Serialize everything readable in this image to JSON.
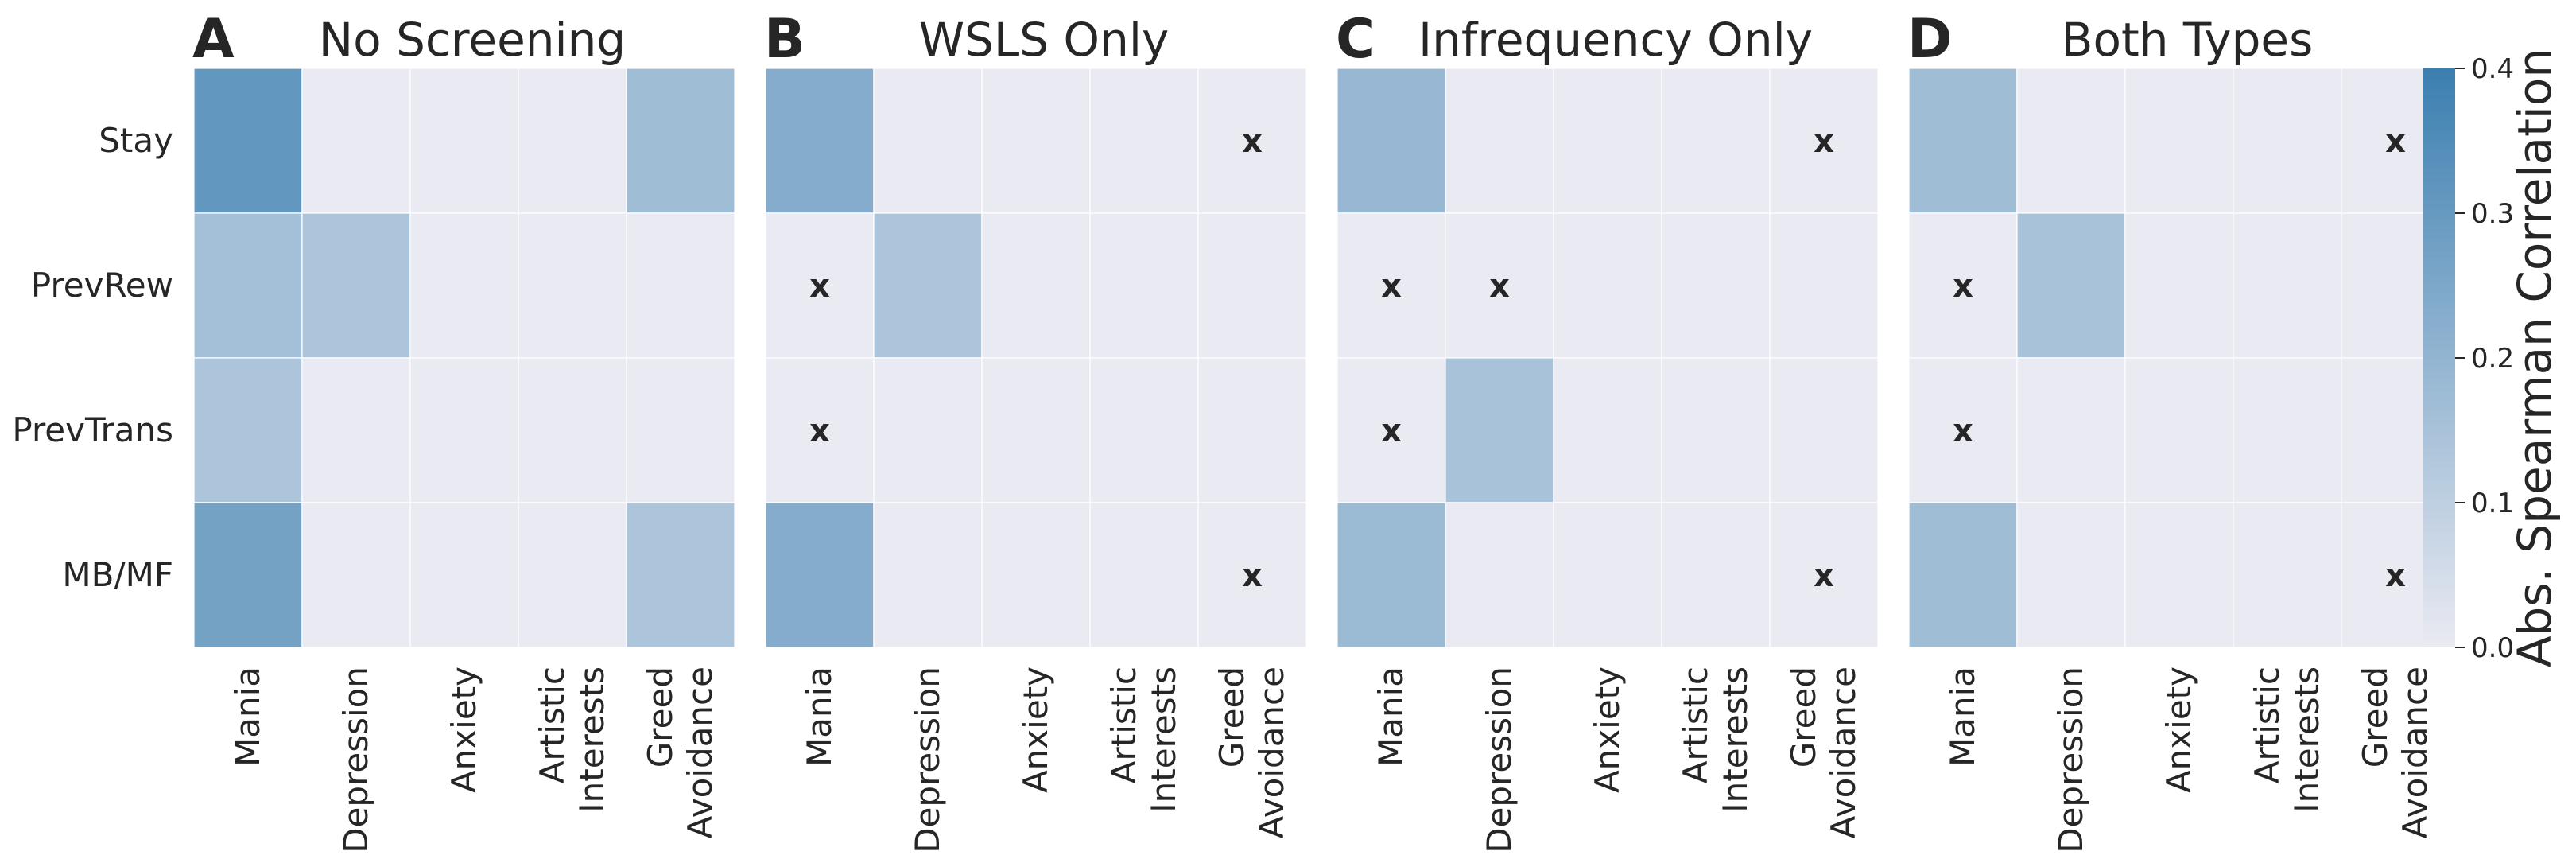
{
  "chart_data": {
    "type": "heatmap",
    "rows": [
      "Stay",
      "PrevRew",
      "PrevTrans",
      "MB/MF"
    ],
    "columns": [
      [
        "Mania"
      ],
      [
        "Depression"
      ],
      [
        "Anxiety"
      ],
      [
        "Artistic",
        "Interests"
      ],
      [
        "Greed",
        "Avoidance"
      ]
    ],
    "panels": [
      {
        "letter": "A",
        "title": "No Screening",
        "values": [
          [
            0.31,
            0.0,
            0.0,
            0.0,
            0.17
          ],
          [
            0.16,
            0.14,
            0.0,
            0.0,
            0.0
          ],
          [
            0.14,
            0.0,
            0.0,
            0.0,
            0.0
          ],
          [
            0.27,
            0.0,
            0.0,
            0.0,
            0.14
          ]
        ],
        "marks": [
          [
            false,
            false,
            false,
            false,
            false
          ],
          [
            false,
            false,
            false,
            false,
            false
          ],
          [
            false,
            false,
            false,
            false,
            false
          ],
          [
            false,
            false,
            false,
            false,
            false
          ]
        ]
      },
      {
        "letter": "B",
        "title": "WSLS Only",
        "values": [
          [
            0.23,
            0.0,
            0.0,
            0.0,
            0.0
          ],
          [
            0.0,
            0.14,
            0.0,
            0.0,
            0.0
          ],
          [
            0.0,
            0.0,
            0.0,
            0.0,
            0.0
          ],
          [
            0.23,
            0.0,
            0.0,
            0.0,
            0.0
          ]
        ],
        "marks": [
          [
            false,
            false,
            false,
            false,
            true
          ],
          [
            true,
            false,
            false,
            false,
            false
          ],
          [
            true,
            false,
            false,
            false,
            false
          ],
          [
            false,
            false,
            false,
            false,
            true
          ]
        ]
      },
      {
        "letter": "C",
        "title": "Infrequency Only",
        "values": [
          [
            0.19,
            0.0,
            0.0,
            0.0,
            0.0
          ],
          [
            0.0,
            0.0,
            0.0,
            0.0,
            0.0
          ],
          [
            0.0,
            0.15,
            0.0,
            0.0,
            0.0
          ],
          [
            0.18,
            0.0,
            0.0,
            0.0,
            0.0
          ]
        ],
        "marks": [
          [
            false,
            false,
            false,
            false,
            true
          ],
          [
            true,
            true,
            false,
            false,
            false
          ],
          [
            true,
            false,
            false,
            false,
            false
          ],
          [
            false,
            false,
            false,
            false,
            true
          ]
        ]
      },
      {
        "letter": "D",
        "title": "Both Types",
        "values": [
          [
            0.17,
            0.0,
            0.0,
            0.0,
            0.0
          ],
          [
            0.0,
            0.15,
            0.0,
            0.0,
            0.0
          ],
          [
            0.0,
            0.0,
            0.0,
            0.0,
            0.0
          ],
          [
            0.17,
            0.0,
            0.0,
            0.0,
            0.0
          ]
        ],
        "marks": [
          [
            false,
            false,
            false,
            false,
            true
          ],
          [
            true,
            false,
            false,
            false,
            false
          ],
          [
            true,
            false,
            false,
            false,
            false
          ],
          [
            false,
            false,
            false,
            false,
            true
          ]
        ]
      }
    ],
    "mark_symbol": "x",
    "colorbar": {
      "label": "Abs. Spearman Correlation",
      "ticks": [
        "0.0",
        "0.1",
        "0.2",
        "0.3",
        "0.4"
      ],
      "range": [
        0,
        0.4
      ],
      "color_low": "#eaeaf2",
      "color_high": "#3b7fb0"
    },
    "background": "#eaeaf2"
  }
}
